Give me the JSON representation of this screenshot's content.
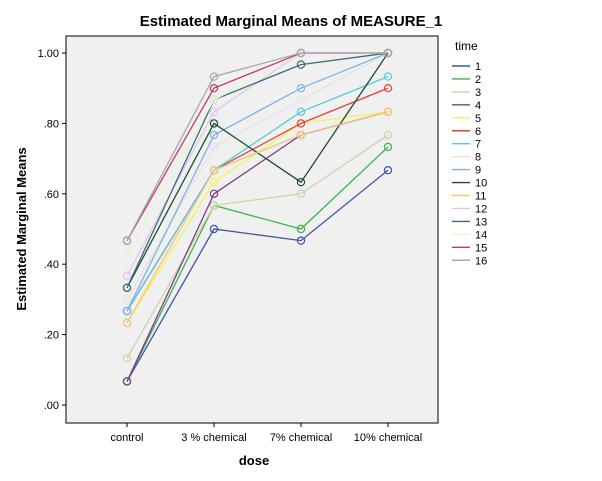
{
  "chart_data": {
    "type": "line",
    "title": "Estimated Marginal Means of MEASURE_1",
    "xlabel": "dose",
    "ylabel": "Estimated Marginal Means",
    "categories": [
      "control",
      "3 % chemical",
      "7% chemical",
      "10% chemical"
    ],
    "ylim": [
      0,
      1.0
    ],
    "yticks": [
      0.0,
      0.2,
      0.4,
      0.6,
      0.8,
      1.0
    ],
    "ytick_labels": [
      ".00",
      ".20",
      ".40",
      ".60",
      ".80",
      "1.00"
    ],
    "legend_title": "time",
    "legend_position": "right",
    "series": [
      {
        "name": "1",
        "color": "#3c56a6",
        "values": [
          0.067,
          0.5,
          0.467,
          0.667
        ]
      },
      {
        "name": "2",
        "color": "#3bb34a",
        "values": [
          0.067,
          0.567,
          0.5,
          0.733
        ]
      },
      {
        "name": "3",
        "color": "#d2d2a6",
        "values": [
          0.133,
          0.567,
          0.6,
          0.767
        ]
      },
      {
        "name": "4",
        "color": "#7b3c8c",
        "values": [
          0.067,
          0.6,
          0.767,
          0.833
        ]
      },
      {
        "name": "5",
        "color": "#f2f257",
        "values": [
          0.233,
          0.633,
          0.8,
          0.833
        ]
      },
      {
        "name": "6",
        "color": "#e8413c",
        "values": [
          0.267,
          0.667,
          0.8,
          0.9
        ]
      },
      {
        "name": "7",
        "color": "#53cdd6",
        "values": [
          0.267,
          0.667,
          0.833,
          0.933
        ]
      },
      {
        "name": "8",
        "color": "#e3e3e3",
        "values": [
          0.3,
          0.733,
          0.867,
          1.0
        ]
      },
      {
        "name": "9",
        "color": "#7fb0e3",
        "values": [
          0.267,
          0.767,
          0.9,
          1.0
        ]
      },
      {
        "name": "10",
        "color": "#1e4d32",
        "values": [
          0.333,
          0.8,
          0.633,
          1.0
        ]
      },
      {
        "name": "11",
        "color": "#f2c37a",
        "values": [
          0.233,
          0.667,
          0.767,
          0.833
        ]
      },
      {
        "name": "12",
        "color": "#dcc8ec",
        "values": [
          0.367,
          0.833,
          1.0,
          1.0
        ]
      },
      {
        "name": "13",
        "color": "#3c6d7a",
        "values": [
          0.333,
          0.867,
          0.967,
          1.0
        ]
      },
      {
        "name": "14",
        "color": "#e8f5cf",
        "values": [
          0.433,
          0.867,
          1.0,
          1.0
        ]
      },
      {
        "name": "15",
        "color": "#c13c6e",
        "values": [
          0.467,
          0.9,
          1.0,
          1.0
        ]
      },
      {
        "name": "16",
        "color": "#a8a8a8",
        "values": [
          0.467,
          0.933,
          1.0,
          1.0
        ]
      }
    ]
  }
}
